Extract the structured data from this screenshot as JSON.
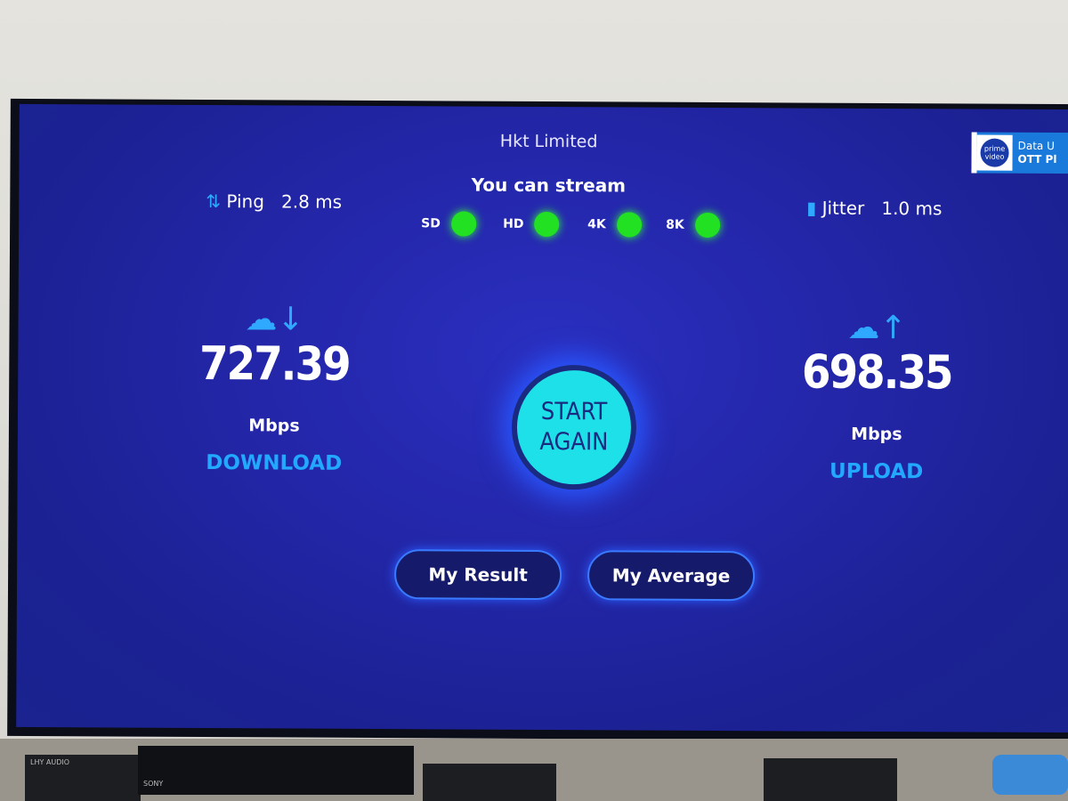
{
  "isp": "Hkt Limited",
  "ping": {
    "label": "Ping",
    "value": "2.8 ms",
    "icon": "up-down-arrows-icon"
  },
  "jitter": {
    "label": "Jitter",
    "value": "1.0 ms",
    "icon": "jitter-icon"
  },
  "stream": {
    "title": "You can stream",
    "qualities": [
      {
        "label": "SD",
        "ok": true
      },
      {
        "label": "HD",
        "ok": true
      },
      {
        "label": "4K",
        "ok": true
      },
      {
        "label": "8K",
        "ok": true
      }
    ],
    "ok_color": "#22e022"
  },
  "download": {
    "value": "727.39",
    "unit": "Mbps",
    "label": "DOWNLOAD",
    "icon": "cloud-download-icon"
  },
  "upload": {
    "value": "698.35",
    "unit": "Mbps",
    "label": "UPLOAD",
    "icon": "cloud-upload-icon"
  },
  "start_button": {
    "line1": "START",
    "line2": "AGAIN"
  },
  "buttons": {
    "my_result": "My Result",
    "my_average": "My Average"
  },
  "banner": {
    "logo_text": "prime video",
    "line1": "Data U",
    "line2": "OTT Pl"
  },
  "devices": {
    "left": "LHY AUDIO",
    "middle": "SONY"
  }
}
